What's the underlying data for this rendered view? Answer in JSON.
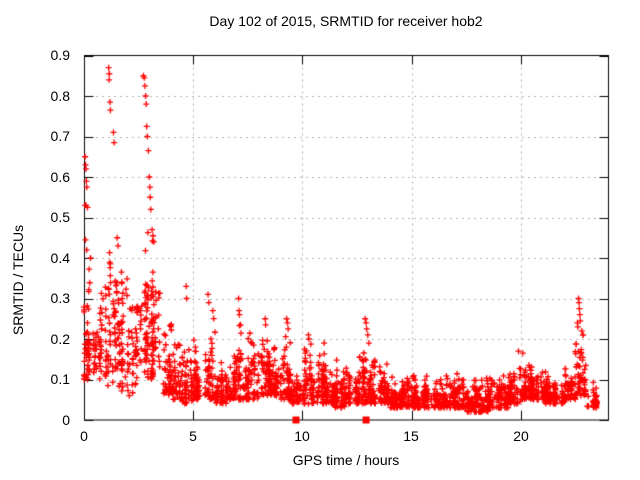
{
  "chart_data": {
    "type": "scatter",
    "title": "Day 102 of 2015, SRMTID for receiver hob2",
    "xlabel": "GPS time / hours",
    "ylabel": "SRMTID / TECUs",
    "xlim": [
      0,
      24
    ],
    "ylim": [
      0,
      0.9
    ],
    "xticks": [
      0,
      5,
      10,
      15,
      20
    ],
    "yticks": [
      0,
      0.1,
      0.2,
      0.3,
      0.4,
      0.5,
      0.6,
      0.7,
      0.8,
      0.9
    ],
    "xticklabels": [
      "0",
      "5",
      "10",
      "15",
      "20"
    ],
    "yticklabels": [
      "0",
      "0.1",
      "0.2",
      "0.3",
      "0.4",
      "0.5",
      "0.6",
      "0.7",
      "0.8",
      "0.9"
    ],
    "grid": true,
    "legend": "none",
    "marker_color": "#ff0000",
    "grid_color": "#b3b3b3",
    "axis_color": "#000000",
    "series": [
      {
        "key": "srmtid_scatter",
        "marker": "plus",
        "color": "#ff0000",
        "outlier_points": [
          [
            0.05,
            0.65
          ],
          [
            0.07,
            0.63
          ],
          [
            0.09,
            0.62
          ],
          [
            0.11,
            0.59
          ],
          [
            0.13,
            0.575
          ],
          [
            0.05,
            0.53
          ],
          [
            0.09,
            0.53
          ],
          [
            0.16,
            0.525
          ],
          [
            0.07,
            0.445
          ],
          [
            0.12,
            0.42
          ],
          [
            0.3,
            0.4
          ],
          [
            1.13,
            0.87
          ],
          [
            1.16,
            0.855
          ],
          [
            1.15,
            0.84
          ],
          [
            1.19,
            0.785
          ],
          [
            1.21,
            0.765
          ],
          [
            1.35,
            0.71
          ],
          [
            1.38,
            0.685
          ],
          [
            1.52,
            0.45
          ],
          [
            1.56,
            0.43
          ],
          [
            2.72,
            0.85
          ],
          [
            2.76,
            0.845
          ],
          [
            2.79,
            0.825
          ],
          [
            2.82,
            0.8
          ],
          [
            2.85,
            0.78
          ],
          [
            2.87,
            0.725
          ],
          [
            2.9,
            0.7
          ],
          [
            2.95,
            0.665
          ],
          [
            2.99,
            0.6
          ],
          [
            3.02,
            0.575
          ],
          [
            3.03,
            0.55
          ],
          [
            3.06,
            0.52
          ],
          [
            3.12,
            0.47
          ],
          [
            3.16,
            0.455
          ],
          [
            3.2,
            0.44
          ],
          [
            4.68,
            0.33
          ],
          [
            4.7,
            0.3
          ],
          [
            5.68,
            0.31
          ],
          [
            5.72,
            0.29
          ],
          [
            5.9,
            0.27
          ],
          [
            7.08,
            0.3
          ],
          [
            7.1,
            0.27
          ],
          [
            7.12,
            0.26
          ],
          [
            8.3,
            0.25
          ],
          [
            8.32,
            0.235
          ],
          [
            9.28,
            0.25
          ],
          [
            9.32,
            0.24
          ],
          [
            9.35,
            0.225
          ],
          [
            10.28,
            0.21
          ],
          [
            10.3,
            0.2
          ],
          [
            11.0,
            0.19
          ],
          [
            12.88,
            0.25
          ],
          [
            12.92,
            0.24
          ],
          [
            12.95,
            0.225
          ],
          [
            13.0,
            0.21
          ],
          [
            13.05,
            0.19
          ],
          [
            19.9,
            0.17
          ],
          [
            20.1,
            0.165
          ],
          [
            22.6,
            0.24
          ],
          [
            22.62,
            0.23
          ],
          [
            22.65,
            0.3
          ],
          [
            22.67,
            0.29
          ],
          [
            22.69,
            0.275
          ],
          [
            22.71,
            0.26
          ],
          [
            22.73,
            0.245
          ],
          [
            22.8,
            0.22
          ],
          [
            22.85,
            0.21
          ]
        ],
        "density_bins": [
          [
            0,
            0.5,
            55,
            0.09,
            0.45
          ],
          [
            0.5,
            1,
            50,
            0.1,
            0.38
          ],
          [
            1,
            1.5,
            50,
            0.08,
            0.46
          ],
          [
            1.5,
            2,
            55,
            0.07,
            0.45
          ],
          [
            2,
            2.5,
            50,
            0.06,
            0.35
          ],
          [
            2.5,
            3,
            55,
            0.1,
            0.5
          ],
          [
            3,
            3.5,
            58,
            0.1,
            0.47
          ],
          [
            3.5,
            4,
            50,
            0.06,
            0.3
          ],
          [
            4,
            4.5,
            50,
            0.05,
            0.22
          ],
          [
            4.5,
            5,
            50,
            0.04,
            0.2
          ],
          [
            5,
            5.5,
            50,
            0.05,
            0.2
          ],
          [
            5.5,
            6,
            50,
            0.05,
            0.28
          ],
          [
            6,
            6.5,
            50,
            0.04,
            0.15
          ],
          [
            6.5,
            7,
            50,
            0.05,
            0.18
          ],
          [
            7,
            7.5,
            52,
            0.05,
            0.24
          ],
          [
            7.5,
            8,
            55,
            0.05,
            0.22
          ],
          [
            8,
            8.5,
            55,
            0.06,
            0.24
          ],
          [
            8.5,
            9,
            55,
            0.06,
            0.22
          ],
          [
            9,
            9.5,
            55,
            0.05,
            0.23
          ],
          [
            9.5,
            10,
            50,
            0.04,
            0.15
          ],
          [
            10,
            10.5,
            55,
            0.04,
            0.2
          ],
          [
            10.5,
            11,
            55,
            0.04,
            0.18
          ],
          [
            11,
            11.5,
            55,
            0.04,
            0.18
          ],
          [
            11.5,
            12,
            55,
            0.03,
            0.16
          ],
          [
            12,
            12.5,
            55,
            0.04,
            0.15
          ],
          [
            12.5,
            13,
            55,
            0.04,
            0.18
          ],
          [
            13,
            13.5,
            55,
            0.04,
            0.17
          ],
          [
            13.5,
            14,
            55,
            0.04,
            0.15
          ],
          [
            14,
            14.5,
            55,
            0.03,
            0.14
          ],
          [
            14.5,
            15,
            55,
            0.03,
            0.13
          ],
          [
            15,
            15.5,
            55,
            0.03,
            0.12
          ],
          [
            15.5,
            16,
            55,
            0.03,
            0.13
          ],
          [
            16,
            16.5,
            55,
            0.03,
            0.14
          ],
          [
            16.5,
            17,
            55,
            0.03,
            0.12
          ],
          [
            17,
            17.5,
            55,
            0.03,
            0.13
          ],
          [
            17.5,
            18,
            55,
            0.02,
            0.11
          ],
          [
            18,
            18.5,
            55,
            0.02,
            0.12
          ],
          [
            18.5,
            19,
            55,
            0.03,
            0.13
          ],
          [
            19,
            19.5,
            55,
            0.03,
            0.13
          ],
          [
            19.5,
            20,
            55,
            0.04,
            0.15
          ],
          [
            20,
            20.5,
            55,
            0.05,
            0.16
          ],
          [
            20.5,
            21,
            55,
            0.05,
            0.15
          ],
          [
            21,
            21.5,
            50,
            0.04,
            0.13
          ],
          [
            21.5,
            22,
            50,
            0.04,
            0.12
          ],
          [
            22,
            22.5,
            50,
            0.05,
            0.18
          ],
          [
            22.5,
            23,
            55,
            0.06,
            0.26
          ],
          [
            23,
            23.5,
            35,
            0.03,
            0.13
          ]
        ]
      },
      {
        "key": "axis_event_markers",
        "marker": "filled-square",
        "color": "#ff0000",
        "points": [
          [
            9.71,
            0
          ],
          [
            12.92,
            0
          ]
        ]
      }
    ]
  }
}
